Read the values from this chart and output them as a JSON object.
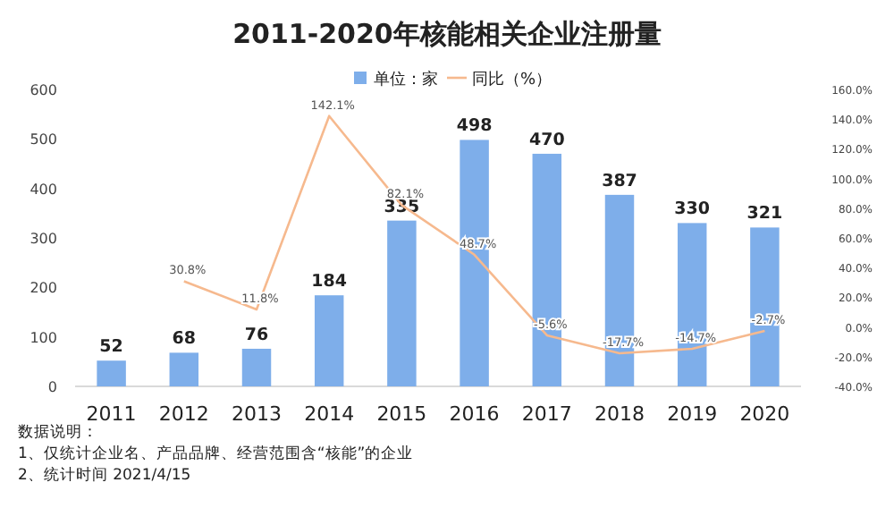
{
  "chart_data": {
    "type": "bar",
    "title": "2011-2020年核能相关企业注册量",
    "categories": [
      "2011",
      "2012",
      "2013",
      "2014",
      "2015",
      "2016",
      "2017",
      "2018",
      "2019",
      "2020"
    ],
    "series": [
      {
        "name": "单位：家",
        "color": "#7eaeea",
        "values": [
          52,
          68,
          76,
          184,
          335,
          498,
          470,
          387,
          330,
          321
        ]
      },
      {
        "name": "同比（%）",
        "type": "line",
        "axis": "y2",
        "color": "#f6b98e",
        "values": [
          null,
          30.8,
          11.8,
          142.1,
          82.1,
          48.7,
          -5.6,
          -17.7,
          -14.7,
          -2.7
        ],
        "value_labels": [
          null,
          "30.8%",
          "11.8%",
          "142.1%",
          "82.1%",
          "48.7%",
          "-5.6%",
          "-17.7%",
          "-14.7%",
          "-2.7%"
        ]
      }
    ],
    "data_labels": true,
    "ylim": [
      0,
      600
    ],
    "yticks": [
      0,
      100,
      200,
      300,
      400,
      500,
      600
    ],
    "y2lim": [
      -40,
      160
    ],
    "y2ticks": [
      {
        "value": -40,
        "label": "-40.0%"
      },
      {
        "value": -20,
        "label": "-20.0%"
      },
      {
        "value": 0,
        "label": "0.0%"
      },
      {
        "value": 20,
        "label": "20.0%"
      },
      {
        "value": 40,
        "label": "40.0%"
      },
      {
        "value": 60,
        "label": "60.0%"
      },
      {
        "value": 80,
        "label": "80.0%"
      },
      {
        "value": 100,
        "label": "100.0%"
      },
      {
        "value": 120,
        "label": "120.0%"
      },
      {
        "value": 140,
        "label": "140.0%"
      },
      {
        "value": 160,
        "label": "160.0%"
      }
    ],
    "legend": "top right",
    "grid": false,
    "marker": "none",
    "annotations": [
      "数据说明：",
      "1、仅统计企业名、产品品牌、经营范围含“核能”的企业",
      "2、统计时间 2021/4/15"
    ]
  }
}
